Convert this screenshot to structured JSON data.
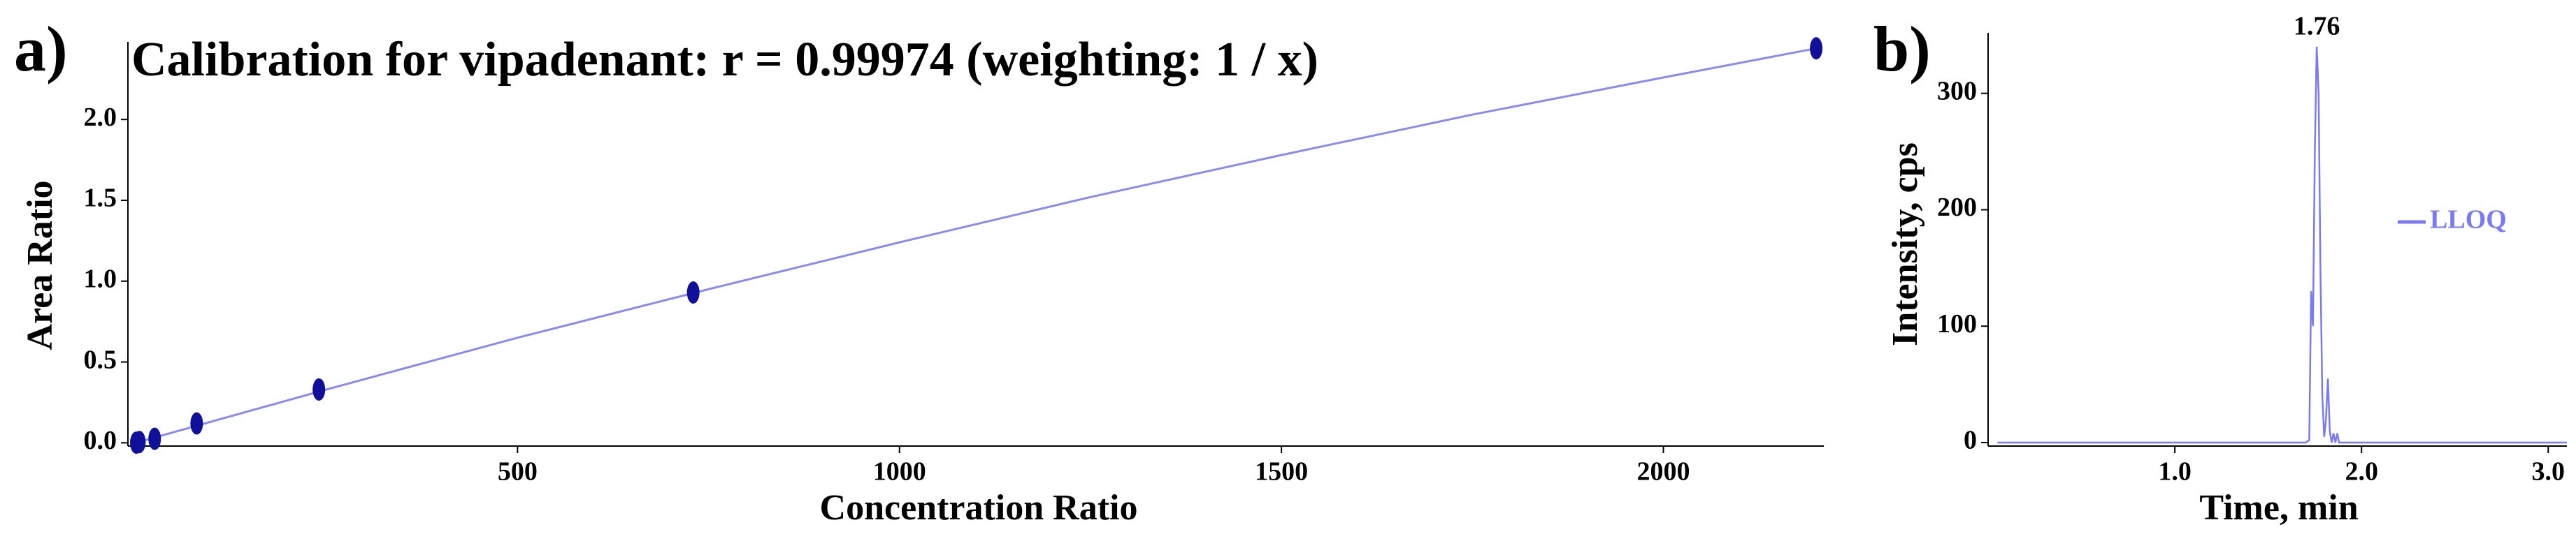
{
  "chart_data": [
    {
      "type": "scatter",
      "panel_label": "a)",
      "title": "Calibration for vipadenant: r = 0.99974  (weighting: 1 / x)",
      "xlabel": "Concentration Ratio",
      "ylabel": "Area Ratio",
      "xlim": [
        -10,
        2210
      ],
      "ylim": [
        -0.02,
        2.48
      ],
      "xticks": [
        500,
        1000,
        1500,
        2000
      ],
      "yticks": [
        {
          "value": 0,
          "label": "0.0"
        },
        0.5,
        {
          "value": 1,
          "label": "1.0"
        },
        1.5,
        {
          "value": 2,
          "label": "2.0"
        }
      ],
      "x": [
        1,
        5,
        25,
        80,
        240,
        730,
        2200
      ],
      "values": [
        0.001,
        0.005,
        0.025,
        0.12,
        0.33,
        0.93,
        2.44
      ],
      "color": "#10109a",
      "fit_x": [
        0,
        250,
        500,
        750,
        1000,
        1250,
        1500,
        1750,
        2000,
        2200
      ],
      "fit_values": [
        0,
        0.33,
        0.65,
        0.95,
        1.24,
        1.52,
        1.78,
        2.03,
        2.26,
        2.44
      ],
      "fit_color": "#8a8af2"
    },
    {
      "type": "line",
      "panel_label": "b)",
      "xlabel": "Time, min",
      "ylabel": "Intensity, cps",
      "xlim": [
        0,
        3.1
      ],
      "ylim": [
        -3,
        352
      ],
      "xticks": [
        {
          "value": 1,
          "label": "1.0"
        },
        {
          "value": 2,
          "label": "2.0"
        },
        {
          "value": 3,
          "label": "3.0"
        }
      ],
      "yticks": [
        0,
        100,
        200,
        300
      ],
      "legend": "right",
      "annotations": [
        {
          "text": "1.76",
          "x": 1.76,
          "y": 340
        }
      ],
      "series": [
        {
          "name": "LLOQ",
          "color": "#7a7af5",
          "x": [
            0.05,
            1.7,
            1.72,
            1.73,
            1.74,
            1.75,
            1.76,
            1.77,
            1.78,
            1.79,
            1.8,
            1.81,
            1.82,
            1.83,
            1.84,
            1.85,
            1.86,
            1.87,
            1.88,
            3.1
          ],
          "values": [
            0,
            0,
            2,
            130,
            100,
            250,
            340,
            300,
            150,
            40,
            5,
            20,
            55,
            10,
            0,
            8,
            0,
            8,
            0,
            0
          ]
        }
      ]
    }
  ]
}
